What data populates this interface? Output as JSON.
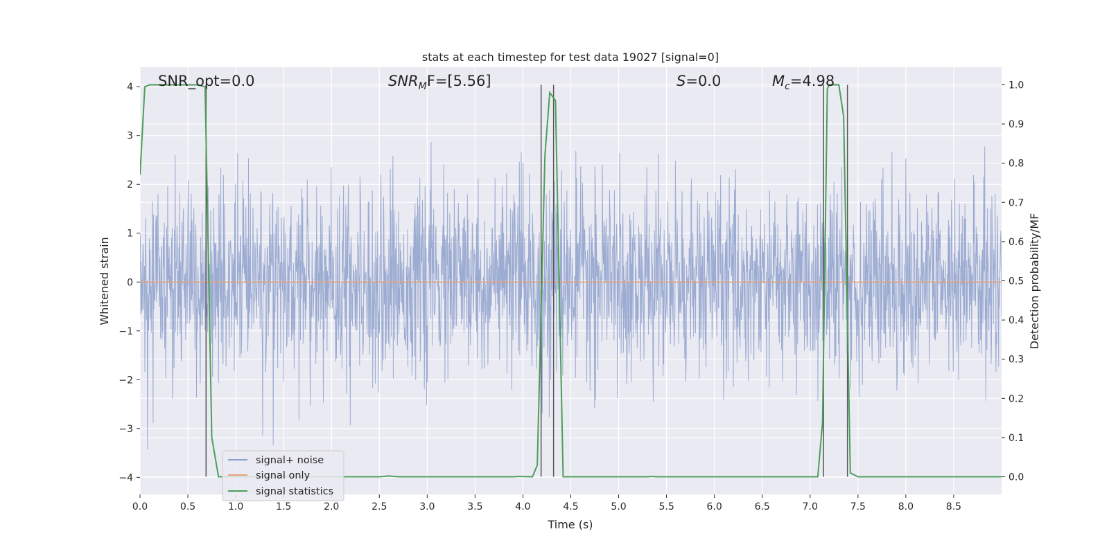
{
  "chart_data": {
    "type": "line",
    "title": "stats at each timestep for test data 19027 [signal=0]",
    "xlabel": "Time (s)",
    "ylabel": "Whitened strain",
    "y2label": "Detection probability/MF",
    "xlim": [
      0.0,
      9.0
    ],
    "ylim": [
      -4.35,
      4.4
    ],
    "y2lim": [
      -0.045,
      1.045
    ],
    "x_ticks": [
      0.0,
      0.5,
      1.0,
      1.5,
      2.0,
      2.5,
      3.0,
      3.5,
      4.0,
      4.5,
      5.0,
      5.5,
      6.0,
      6.5,
      7.0,
      7.5,
      8.0,
      8.5
    ],
    "x_tick_labels": [
      "0.0",
      "0.5",
      "1.0",
      "1.5",
      "2.0",
      "2.5",
      "3.0",
      "3.5",
      "4.0",
      "4.5",
      "5.0",
      "5.5",
      "6.0",
      "6.5",
      "7.0",
      "7.5",
      "8.0",
      "8.5"
    ],
    "y_ticks": [
      -4,
      -3,
      -2,
      -1,
      0,
      1,
      2,
      3,
      4
    ],
    "y_tick_labels": [
      "−4",
      "−3",
      "−2",
      "−1",
      "0",
      "1",
      "2",
      "3",
      "4"
    ],
    "y2_ticks": [
      0.0,
      0.1,
      0.2,
      0.3,
      0.4,
      0.5,
      0.6,
      0.7,
      0.8,
      0.9,
      1.0
    ],
    "y2_tick_labels": [
      "0.0",
      "0.1",
      "0.2",
      "0.3",
      "0.4",
      "0.5",
      "0.6",
      "0.7",
      "0.8",
      "0.9",
      "1.0"
    ],
    "grid": true,
    "legend_position": "lower-left",
    "annotations": {
      "snr_opt": "SNR_opt=0.0",
      "snr_mf_main": "SNR",
      "snr_mf_sub": "M",
      "snr_mf_rest": "F=[5.56]",
      "s_main": "S",
      "s_rest": "=0.0",
      "mc_main": "M",
      "mc_sub": "c",
      "mc_rest": "=4.98"
    },
    "series": [
      {
        "name": "signal+ noise",
        "color": "#8da0cb",
        "noise": {
          "n": 2304,
          "sigma": 0.95,
          "clip": [
            -3.95,
            3.85
          ]
        }
      },
      {
        "name": "signal only",
        "color": "#e5a27a",
        "values_constant": 0.0
      },
      {
        "name": "signal statistics",
        "color": "#4c9e5a",
        "axis": "right",
        "points": [
          [
            0.0,
            0.77
          ],
          [
            0.05,
            0.995
          ],
          [
            0.1,
            1.0
          ],
          [
            0.6,
            1.0
          ],
          [
            0.68,
            0.995
          ],
          [
            0.75,
            0.1
          ],
          [
            0.82,
            0.0
          ],
          [
            2.5,
            0.0
          ],
          [
            2.6,
            0.002
          ],
          [
            2.7,
            0.0
          ],
          [
            3.9,
            0.0
          ],
          [
            3.95,
            0.001
          ],
          [
            4.1,
            0.0
          ],
          [
            4.15,
            0.03
          ],
          [
            4.23,
            0.82
          ],
          [
            4.28,
            0.98
          ],
          [
            4.34,
            0.96
          ],
          [
            4.42,
            0.0
          ],
          [
            5.3,
            0.0
          ],
          [
            5.35,
            0.001
          ],
          [
            5.4,
            0.0
          ],
          [
            7.08,
            0.0
          ],
          [
            7.13,
            0.14
          ],
          [
            7.18,
            0.99
          ],
          [
            7.2,
            1.0
          ],
          [
            7.3,
            1.0
          ],
          [
            7.35,
            0.92
          ],
          [
            7.42,
            0.01
          ],
          [
            7.5,
            0.0
          ],
          [
            9.0,
            0.0
          ]
        ]
      }
    ],
    "vertical_markers": [
      {
        "x": 0.69,
        "y2_from": 0.0,
        "y2_to": 1.0
      },
      {
        "x": 4.19,
        "y2_from": 0.0,
        "y2_to": 1.0
      },
      {
        "x": 4.32,
        "y2_from": 0.0,
        "y2_to": 1.0
      },
      {
        "x": 7.14,
        "y2_from": 0.0,
        "y2_to": 1.0
      },
      {
        "x": 7.39,
        "y2_from": 0.0,
        "y2_to": 1.0
      }
    ]
  }
}
